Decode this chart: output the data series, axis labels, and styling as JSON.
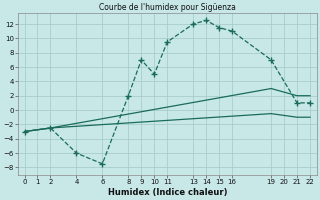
{
  "title": "Courbe de l'humidex pour Sigüenza",
  "xlabel": "Humidex (Indice chaleur)",
  "xlim": [
    -0.5,
    22.5
  ],
  "ylim": [
    -9,
    13.5
  ],
  "xticks": [
    0,
    1,
    2,
    4,
    6,
    8,
    9,
    10,
    11,
    13,
    14,
    15,
    16,
    19,
    20,
    21,
    22
  ],
  "yticks": [
    -8,
    -6,
    -4,
    -2,
    0,
    2,
    4,
    6,
    8,
    10,
    12
  ],
  "background_color": "#c8e8e8",
  "grid_color": "#a8cccc",
  "line_color": "#1a6b5a",
  "main_x": [
    0,
    2,
    4,
    6,
    8,
    9,
    10,
    11,
    13,
    14,
    15,
    16,
    19,
    21,
    22
  ],
  "main_y": [
    -3,
    -2.5,
    -6,
    -7.5,
    2,
    7,
    5,
    9.5,
    12,
    12.5,
    11.5,
    11,
    7,
    1,
    1
  ],
  "line_upper_x": [
    0,
    2,
    19,
    21,
    22
  ],
  "line_upper_y": [
    -3,
    -2.5,
    3,
    2,
    2
  ],
  "line_lower_x": [
    0,
    2,
    19,
    21,
    22
  ],
  "line_lower_y": [
    -3,
    -2.5,
    -0.5,
    -1,
    -1
  ]
}
